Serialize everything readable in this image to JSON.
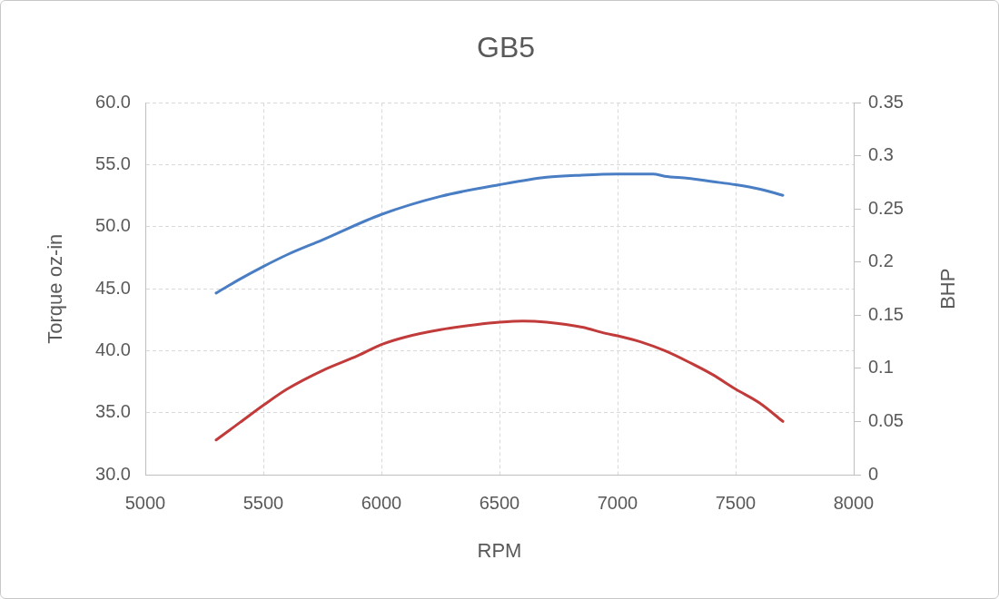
{
  "chart_data": {
    "type": "line",
    "title": "GB5",
    "xlabel": "RPM",
    "ylabel": "Torque oz-in",
    "y2label": "BHP",
    "xlim": [
      5000,
      8000
    ],
    "xticks": [
      5000,
      5500,
      6000,
      6500,
      7000,
      7500,
      8000
    ],
    "ylim": [
      30,
      60
    ],
    "yticks": [
      {
        "value": 30,
        "label": "30.0"
      },
      {
        "value": 35,
        "label": "35.0"
      },
      {
        "value": 40,
        "label": "40.0"
      },
      {
        "value": 45,
        "label": "45.0"
      },
      {
        "value": 50,
        "label": "50.0"
      },
      {
        "value": 55,
        "label": "55.0"
      },
      {
        "value": 60,
        "label": "60.0"
      }
    ],
    "y2lim": [
      0,
      0.35
    ],
    "y2ticks": [
      0,
      0.05,
      0.1,
      0.15,
      0.2,
      0.25,
      0.3,
      0.35
    ],
    "grid": true,
    "marker": "none",
    "series": [
      {
        "color": "#c23b3b",
        "x": [
          5300,
          5400,
          5500,
          5600,
          5750,
          5900,
          6000,
          6100,
          6250,
          6400,
          6500,
          6600,
          6700,
          6850,
          6950,
          7000,
          7100,
          7200,
          7300,
          7400,
          7500,
          7600,
          7700
        ],
        "values": [
          32.8,
          34.2,
          35.6,
          36.9,
          38.4,
          39.6,
          40.5,
          41.1,
          41.7,
          42.1,
          42.3,
          42.4,
          42.3,
          41.9,
          41.4,
          41.2,
          40.7,
          40.0,
          39.1,
          38.1,
          36.9,
          35.8,
          34.3
        ]
      },
      {
        "color": "#4a7ec4",
        "axis": "y2",
        "x": [
          5300,
          5400,
          5500,
          5600,
          5750,
          6000,
          6250,
          6500,
          6700,
          6850,
          7000,
          7150,
          7200,
          7300,
          7400,
          7500,
          7600,
          7700
        ],
        "values": [
          0.171,
          0.184,
          0.196,
          0.207,
          0.221,
          0.245,
          0.262,
          0.273,
          0.28,
          0.282,
          0.283,
          0.283,
          0.281,
          0.279,
          0.276,
          0.273,
          0.269,
          0.263
        ]
      }
    ]
  }
}
